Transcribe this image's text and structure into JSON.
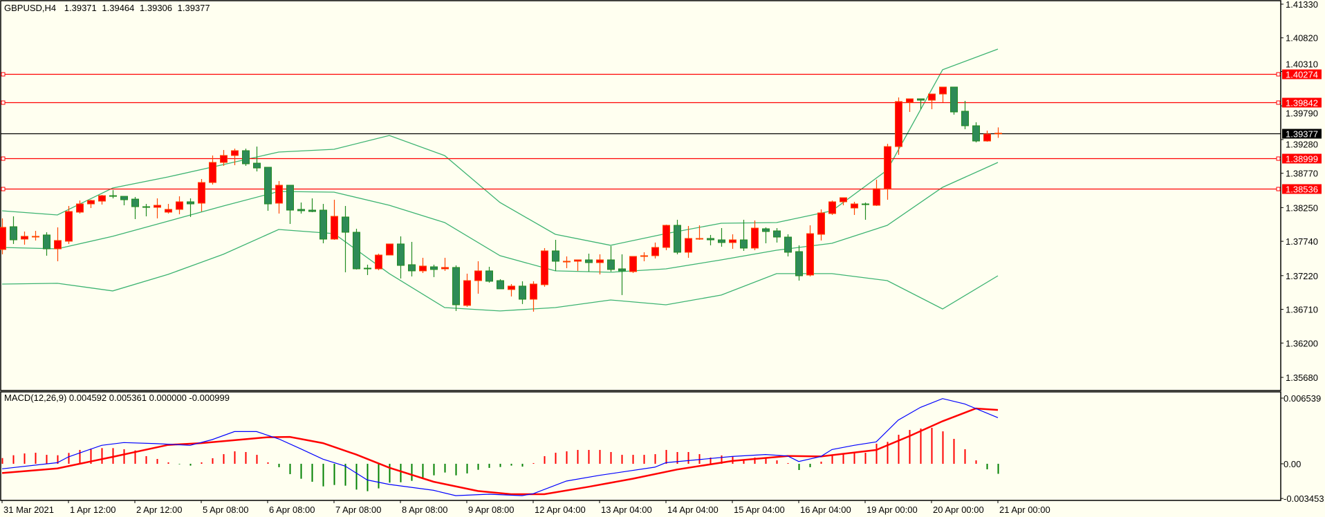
{
  "header": {
    "symbol": "GBPUSD,H4",
    "open": "1.39371",
    "high": "1.39464",
    "low": "1.39306",
    "close": "1.39377"
  },
  "price_axis": {
    "ticks": [
      "1.41330",
      "1.40820",
      "1.40310",
      "1.39790",
      "1.39280",
      "1.38770",
      "1.38250",
      "1.37740",
      "1.37220",
      "1.36710",
      "1.36200",
      "1.35680"
    ]
  },
  "levels": [
    {
      "price": "1.40274",
      "color": "#FF0000"
    },
    {
      "price": "1.39842",
      "color": "#FF0000"
    },
    {
      "price": "1.38999",
      "color": "#FF0000"
    },
    {
      "price": "1.38536",
      "color": "#FF0000"
    }
  ],
  "current_price": {
    "price": "1.39377",
    "color": "#000000"
  },
  "macd": {
    "label": "MACD(12,26,9) 0.004592 0.005361 0.000000 -0.000999",
    "axis_ticks": [
      "0.006539",
      "0.00",
      "-0.003453"
    ]
  },
  "time_axis": [
    "31 Mar 2021",
    "1 Apr 12:00",
    "2 Apr 12:00",
    "5 Apr 08:00",
    "6 Apr 08:00",
    "7 Apr 08:00",
    "8 Apr 08:00",
    "9 Apr 08:00",
    "12 Apr 04:00",
    "13 Apr 04:00",
    "14 Apr 04:00",
    "15 Apr 04:00",
    "16 Apr 04:00",
    "19 Apr 00:00",
    "20 Apr 00:00",
    "21 Apr 00:00"
  ],
  "colors": {
    "background": "#FFFFF0",
    "bull_body": "#FF0000",
    "bull_edge": "#FF4500",
    "bear_body": "#2E8B57",
    "bear_edge": "#228B22",
    "bands": "#3CB371",
    "macd_line": "#0000FF",
    "signal_line": "#FF0000"
  },
  "chart_data": [
    {
      "type": "candlestick",
      "title": "GBPUSD,H4",
      "ylim": [
        1.3568,
        1.4133
      ],
      "bar_interval": "4h",
      "ohlc": [
        [
          1.37616,
          1.38087,
          1.37543,
          1.37951
        ],
        [
          1.37961,
          1.38118,
          1.377,
          1.37762
        ],
        [
          1.37773,
          1.37888,
          1.37689,
          1.37815
        ],
        [
          1.37812,
          1.37898,
          1.37752,
          1.37815
        ],
        [
          1.37836,
          1.37877,
          1.37522,
          1.37626
        ],
        [
          1.37626,
          1.37951,
          1.37438,
          1.37752
        ],
        [
          1.37741,
          1.38275,
          1.377,
          1.38191
        ],
        [
          1.38181,
          1.38358,
          1.3816,
          1.38306
        ],
        [
          1.38306,
          1.38369,
          1.38244,
          1.38358
        ],
        [
          1.38348,
          1.38442,
          1.38296,
          1.38431
        ],
        [
          1.38431,
          1.38515,
          1.3839,
          1.38421
        ],
        [
          1.38421,
          1.38421,
          1.38285,
          1.38369
        ],
        [
          1.38379,
          1.38411,
          1.38076,
          1.38264
        ],
        [
          1.38264,
          1.38306,
          1.38118,
          1.38254
        ],
        [
          1.38254,
          1.3839,
          1.38087,
          1.38285
        ],
        [
          1.38181,
          1.38306,
          1.3816,
          1.38223
        ],
        [
          1.38223,
          1.38421,
          1.38149,
          1.38338
        ],
        [
          1.38338,
          1.3839,
          1.38108,
          1.38306
        ],
        [
          1.38317,
          1.38683,
          1.38191,
          1.3863
        ],
        [
          1.3863,
          1.39039,
          1.38599,
          1.38934
        ],
        [
          1.38934,
          1.39122,
          1.38882,
          1.39039
        ],
        [
          1.39039,
          1.39143,
          1.38892,
          1.39112
        ],
        [
          1.39112,
          1.39143,
          1.38882,
          1.38913
        ],
        [
          1.38923,
          1.39174,
          1.38798,
          1.3885
        ],
        [
          1.38861,
          1.38861,
          1.38202,
          1.38306
        ],
        [
          1.38317,
          1.38652,
          1.3816,
          1.38589
        ],
        [
          1.38589,
          1.38589,
          1.38003,
          1.38212
        ],
        [
          1.38223,
          1.38327,
          1.3816,
          1.38202
        ],
        [
          1.38212,
          1.3839,
          1.38181,
          1.38191
        ],
        [
          1.38212,
          1.38306,
          1.3771,
          1.37773
        ],
        [
          1.37773,
          1.38369,
          1.37762,
          1.38118
        ],
        [
          1.38108,
          1.38275,
          1.37271,
          1.37877
        ],
        [
          1.37877,
          1.3793,
          1.37313,
          1.37323
        ],
        [
          1.37333,
          1.37386,
          1.37229,
          1.37323
        ],
        [
          1.37323,
          1.37553,
          1.37302,
          1.37532
        ],
        [
          1.37532,
          1.377,
          1.37532,
          1.377
        ],
        [
          1.377,
          1.37815,
          1.37177,
          1.37375
        ],
        [
          1.37386,
          1.37731,
          1.37208,
          1.37292
        ],
        [
          1.37292,
          1.3749,
          1.3726,
          1.37365
        ],
        [
          1.37354,
          1.37386,
          1.37198,
          1.37313
        ],
        [
          1.37323,
          1.3749,
          1.37292,
          1.37344
        ],
        [
          1.37344,
          1.37375,
          1.36685,
          1.36779
        ],
        [
          1.36769,
          1.3725,
          1.36748,
          1.37145
        ],
        [
          1.37145,
          1.37438,
          1.36947,
          1.37292
        ],
        [
          1.37292,
          1.37354,
          1.37114,
          1.37135
        ],
        [
          1.37145,
          1.37166,
          1.3702,
          1.3702
        ],
        [
          1.3701,
          1.37093,
          1.36905,
          1.37062
        ],
        [
          1.37062,
          1.37135,
          1.3679,
          1.36863
        ],
        [
          1.36863,
          1.37135,
          1.36675,
          1.37093
        ],
        [
          1.37083,
          1.37637,
          1.37052,
          1.37595
        ],
        [
          1.37595,
          1.37762,
          1.37292,
          1.37438
        ],
        [
          1.37427,
          1.37511,
          1.37333,
          1.37438
        ],
        [
          1.37438,
          1.37459,
          1.37292,
          1.37459
        ],
        [
          1.37459,
          1.37553,
          1.37281,
          1.37417
        ],
        [
          1.37417,
          1.37543,
          1.37239,
          1.37459
        ],
        [
          1.37459,
          1.37668,
          1.37281,
          1.37313
        ],
        [
          1.37323,
          1.37543,
          1.36926,
          1.37292
        ],
        [
          1.37281,
          1.37511,
          1.3726,
          1.37511
        ],
        [
          1.37511,
          1.37574,
          1.37438,
          1.37522
        ],
        [
          1.37522,
          1.37721,
          1.3748,
          1.37647
        ],
        [
          1.37647,
          1.37992,
          1.37605,
          1.37982
        ],
        [
          1.37982,
          1.38066,
          1.37543,
          1.37574
        ],
        [
          1.37574,
          1.37972,
          1.3749,
          1.37783
        ],
        [
          1.37773,
          1.37982,
          1.37762,
          1.37783
        ],
        [
          1.37783,
          1.37836,
          1.37679,
          1.37762
        ],
        [
          1.37762,
          1.3794,
          1.37658,
          1.37721
        ],
        [
          1.37721,
          1.37846,
          1.37626,
          1.37762
        ],
        [
          1.37762,
          1.38066,
          1.37595,
          1.37637
        ],
        [
          1.37637,
          1.38055,
          1.37605,
          1.3794
        ],
        [
          1.3793,
          1.37951,
          1.3771,
          1.37888
        ],
        [
          1.37898,
          1.3794,
          1.37721,
          1.37804
        ],
        [
          1.37804,
          1.37846,
          1.37511,
          1.37574
        ],
        [
          1.37584,
          1.37679,
          1.37145,
          1.37218
        ],
        [
          1.37229,
          1.37982,
          1.37208,
          1.37856
        ],
        [
          1.37846,
          1.38223,
          1.37752,
          1.3817
        ],
        [
          1.3816,
          1.38358,
          1.38139,
          1.38338
        ],
        [
          1.38338,
          1.384,
          1.38285,
          1.384
        ],
        [
          1.38244,
          1.38338,
          1.38139,
          1.38306
        ],
        [
          1.38306,
          1.38327,
          1.38066,
          1.38296
        ],
        [
          1.38285,
          1.38672,
          1.38275,
          1.38536
        ],
        [
          1.38536,
          1.39216,
          1.38369,
          1.39174
        ],
        [
          1.39174,
          1.39918,
          1.39049,
          1.39855
        ],
        [
          1.39845,
          1.39897,
          1.39698,
          1.39897
        ],
        [
          1.39897,
          1.39897,
          1.3974,
          1.39876
        ],
        [
          1.39876,
          1.3997,
          1.3974,
          1.3997
        ],
        [
          1.3997,
          1.40075,
          1.39845,
          1.40075
        ],
        [
          1.40075,
          1.40075,
          1.39657,
          1.39698
        ],
        [
          1.39709,
          1.39866,
          1.39437,
          1.39489
        ],
        [
          1.39489,
          1.39542,
          1.39237,
          1.39258
        ],
        [
          1.39258,
          1.39415,
          1.39248,
          1.39363
        ],
        [
          1.39371,
          1.39464,
          1.39306,
          1.39377
        ]
      ],
      "bollinger": {
        "bars": [
          0,
          5,
          10,
          15,
          20,
          25,
          30,
          35,
          40,
          45,
          50,
          55,
          60,
          65,
          70,
          75,
          80,
          85,
          90
        ],
        "upper": [
          1.38202,
          1.38139,
          1.38547,
          1.38714,
          1.38902,
          1.39091,
          1.39133,
          1.39342,
          1.39038,
          1.38327,
          1.37846,
          1.37679,
          1.37856,
          1.38013,
          1.38024,
          1.38202,
          1.38819,
          1.40337,
          1.4065
        ],
        "middle": [
          1.37647,
          1.37626,
          1.37815,
          1.38045,
          1.38275,
          1.38495,
          1.38484,
          1.38285,
          1.38024,
          1.37522,
          1.37292,
          1.37271,
          1.37323,
          1.37459,
          1.37605,
          1.3771,
          1.37982,
          1.38557,
          1.38934
        ],
        "lower": [
          1.37093,
          1.37104,
          1.36989,
          1.37239,
          1.37543,
          1.37919,
          1.37856,
          1.3725,
          1.36737,
          1.36685,
          1.36737,
          1.36852,
          1.36779,
          1.36926,
          1.3725,
          1.3725,
          1.37145,
          1.36716,
          1.37218
        ]
      }
    },
    {
      "type": "bar",
      "title": "MACD(12,26,9)",
      "ylim": [
        -0.003453,
        0.006539
      ],
      "histogram": [
        0.00057,
        0.00085,
        0.00103,
        0.0011,
        0.00089,
        0.00085,
        0.00108,
        0.00138,
        0.00151,
        0.00156,
        0.00156,
        0.00145,
        0.00133,
        0.00076,
        0.00048,
        0.00014,
        -5e-05,
        -0.00018,
        0.00014,
        0.00055,
        0.00096,
        0.00124,
        0.00117,
        0.00089,
        0.00014,
        -0.00034,
        -0.00103,
        -0.00149,
        -0.00179,
        -0.00225,
        -0.00211,
        -0.00218,
        -0.00257,
        -0.00273,
        -0.00245,
        -0.00188,
        -0.00184,
        -0.0017,
        -0.00149,
        -0.00115,
        -0.00087,
        -0.00115,
        -0.00096,
        -0.0006,
        -0.00041,
        -0.00032,
        -0.00018,
        -0.00028,
        7e-05,
        0.00076,
        0.0011,
        0.00124,
        0.00138,
        0.00138,
        0.00138,
        0.00117,
        0.00089,
        0.00089,
        0.00089,
        0.00096,
        0.00138,
        0.00117,
        0.00117,
        0.00096,
        0.00062,
        0.00083,
        0.00069,
        0.00034,
        0.00062,
        0.00062,
        0.00034,
        7e-05,
        -0.00062,
        -0.00034,
        0.00021,
        0.00083,
        0.00096,
        0.00117,
        0.0011,
        0.002,
        0.00218,
        0.00289,
        0.00337,
        0.00351,
        0.00358,
        0.00323,
        0.00248,
        0.00145,
        0.00034,
        -0.00055,
        -0.000999
      ],
      "macd_line": [
        [
          0,
          -0.0005
        ],
        [
          5,
          0.00011
        ],
        [
          6,
          0.00069
        ],
        [
          9,
          0.00184
        ],
        [
          11,
          0.00211
        ],
        [
          14,
          0.002
        ],
        [
          17,
          0.00184
        ],
        [
          19,
          0.00241
        ],
        [
          21,
          0.00321
        ],
        [
          23,
          0.00321
        ],
        [
          25,
          0.00248
        ],
        [
          27,
          0.00149
        ],
        [
          29,
          0.00046
        ],
        [
          31,
          -0.00023
        ],
        [
          33,
          -0.00161
        ],
        [
          35,
          -0.00206
        ],
        [
          39,
          -0.00264
        ],
        [
          41,
          -0.00317
        ],
        [
          44,
          -0.00303
        ],
        [
          47,
          -0.00317
        ],
        [
          48,
          -0.00298
        ],
        [
          51,
          -0.00172
        ],
        [
          54,
          -0.00115
        ],
        [
          59,
          -0.00034
        ],
        [
          60,
          0.00011
        ],
        [
          66,
          0.00073
        ],
        [
          69,
          0.00092
        ],
        [
          71,
          0.00078
        ],
        [
          72,
          0.00023
        ],
        [
          74,
          0.00073
        ],
        [
          75,
          0.00142
        ],
        [
          77,
          0.00184
        ],
        [
          79,
          0.00218
        ],
        [
          81,
          0.00436
        ],
        [
          83,
          0.00562
        ],
        [
          85,
          0.00649
        ],
        [
          87,
          0.00596
        ],
        [
          90,
          0.004592
        ]
      ],
      "signal_line": [
        [
          0,
          -0.00092
        ],
        [
          5,
          -0.00046
        ],
        [
          10,
          0.00069
        ],
        [
          15,
          0.00188
        ],
        [
          18,
          0.00206
        ],
        [
          24,
          0.00264
        ],
        [
          26,
          0.00268
        ],
        [
          29,
          0.00206
        ],
        [
          32,
          0.00092
        ],
        [
          35,
          -0.00039
        ],
        [
          39,
          -0.00179
        ],
        [
          43,
          -0.00271
        ],
        [
          46,
          -0.00303
        ],
        [
          49,
          -0.00303
        ],
        [
          53,
          -0.00229
        ],
        [
          57,
          -0.00149
        ],
        [
          61,
          -0.00057
        ],
        [
          66,
          0.00028
        ],
        [
          71,
          0.00078
        ],
        [
          74,
          0.00073
        ],
        [
          79,
          0.00138
        ],
        [
          82,
          0.00275
        ],
        [
          85,
          0.00424
        ],
        [
          88,
          0.00551
        ],
        [
          90,
          0.005361
        ]
      ]
    }
  ]
}
